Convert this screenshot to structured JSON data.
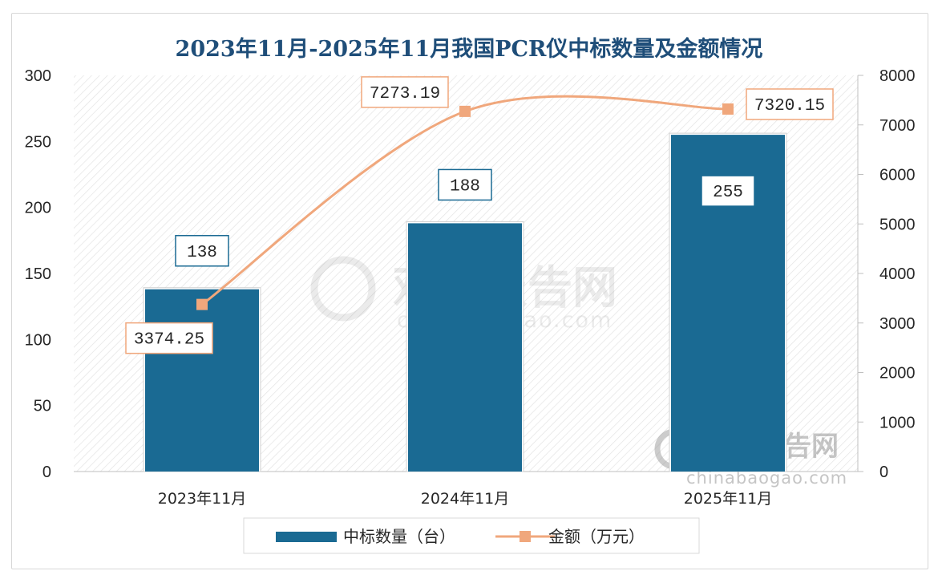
{
  "chart_data": {
    "type": "bar",
    "title": "2023年11月-2025年11月我国PCR仪中标数量及金额情况",
    "categories": [
      "2023年11月",
      "2024年11月",
      "2025年11月"
    ],
    "series": [
      {
        "name": "中标数量（台）",
        "type": "bar",
        "axis": "left",
        "color": "#1a6a93",
        "values": [
          138,
          188,
          255
        ]
      },
      {
        "name": "金额（万元）",
        "type": "line",
        "axis": "right",
        "color": "#f0a77c",
        "values": [
          3374.25,
          7273.19,
          7320.15
        ]
      }
    ],
    "y_left": {
      "min": 0,
      "max": 300,
      "ticks": [
        0,
        50,
        100,
        150,
        200,
        250,
        300
      ]
    },
    "y_right": {
      "min": 0,
      "max": 8000,
      "ticks": [
        0,
        1000,
        2000,
        3000,
        4000,
        5000,
        6000,
        7000,
        8000
      ]
    },
    "legend_position": "bottom",
    "grid": false,
    "watermark": {
      "cn": "观研报告网",
      "en": "chinabaogao.com"
    }
  }
}
